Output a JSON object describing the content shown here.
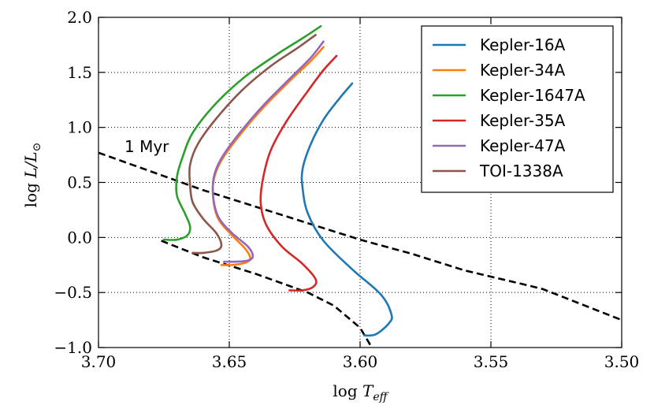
{
  "chart_data": {
    "type": "line",
    "xlabel_prefix": "log ",
    "xlabel_var": "T",
    "xlabel_sub": "eff",
    "ylabel_prefix": "log ",
    "ylabel_var": "L/L",
    "ylabel_sub": "⊙",
    "xlim": [
      3.7,
      3.5
    ],
    "ylim": [
      -1.0,
      2.0
    ],
    "x_ticks": [
      3.7,
      3.65,
      3.6,
      3.55,
      3.5
    ],
    "x_tick_labels": [
      "3.70",
      "3.65",
      "3.60",
      "3.55",
      "3.50"
    ],
    "y_ticks": [
      2.0,
      1.5,
      1.0,
      0.5,
      0.0,
      -0.5,
      -1.0
    ],
    "y_tick_labels": [
      "2.0",
      "1.5",
      "1.0",
      "0.5",
      "0.0",
      "−0.5",
      "−1.0"
    ],
    "grid": true,
    "legend_position": "top-right",
    "annotation": "1 Myr",
    "series": [
      {
        "name": "Kepler-16A",
        "color": "#1f77b4",
        "points": [
          [
            3.5985,
            -0.89
          ],
          [
            3.594,
            -0.88
          ],
          [
            3.589,
            -0.78
          ],
          [
            3.588,
            -0.7
          ],
          [
            3.592,
            -0.52
          ],
          [
            3.603,
            -0.29
          ],
          [
            3.614,
            -0.03
          ],
          [
            3.62,
            0.22
          ],
          [
            3.622,
            0.45
          ],
          [
            3.622,
            0.62
          ],
          [
            3.619,
            0.84
          ],
          [
            3.614,
            1.07
          ],
          [
            3.608,
            1.26
          ],
          [
            3.603,
            1.4
          ]
        ]
      },
      {
        "name": "Kepler-34A",
        "color": "#ff7f0e",
        "points": [
          [
            3.653,
            -0.25
          ],
          [
            3.649,
            -0.25
          ],
          [
            3.644,
            -0.23
          ],
          [
            3.642,
            -0.19
          ],
          [
            3.644,
            -0.1
          ],
          [
            3.649,
            0.02
          ],
          [
            3.654,
            0.16
          ],
          [
            3.656,
            0.32
          ],
          [
            3.656,
            0.52
          ],
          [
            3.653,
            0.7
          ],
          [
            3.646,
            0.93
          ],
          [
            3.637,
            1.18
          ],
          [
            3.627,
            1.42
          ],
          [
            3.619,
            1.6
          ],
          [
            3.614,
            1.73
          ]
        ]
      },
      {
        "name": "Kepler-1647A",
        "color": "#2ca02c",
        "points": [
          [
            3.675,
            -0.02
          ],
          [
            3.67,
            -0.02
          ],
          [
            3.666,
            0.02
          ],
          [
            3.665,
            0.1
          ],
          [
            3.667,
            0.22
          ],
          [
            3.67,
            0.38
          ],
          [
            3.67,
            0.55
          ],
          [
            3.668,
            0.72
          ],
          [
            3.664,
            0.95
          ],
          [
            3.655,
            1.22
          ],
          [
            3.644,
            1.46
          ],
          [
            3.632,
            1.66
          ],
          [
            3.622,
            1.81
          ],
          [
            3.615,
            1.92
          ]
        ]
      },
      {
        "name": "Kepler-35A",
        "color": "#d62728",
        "points": [
          [
            3.627,
            -0.48
          ],
          [
            3.622,
            -0.48
          ],
          [
            3.618,
            -0.45
          ],
          [
            3.617,
            -0.38
          ],
          [
            3.622,
            -0.24
          ],
          [
            3.63,
            -0.08
          ],
          [
            3.636,
            0.12
          ],
          [
            3.638,
            0.32
          ],
          [
            3.637,
            0.55
          ],
          [
            3.634,
            0.8
          ],
          [
            3.628,
            1.06
          ],
          [
            3.62,
            1.33
          ],
          [
            3.614,
            1.52
          ],
          [
            3.609,
            1.65
          ]
        ]
      },
      {
        "name": "Kepler-47A",
        "color": "#9467bd",
        "points": [
          [
            3.652,
            -0.22
          ],
          [
            3.648,
            -0.22
          ],
          [
            3.643,
            -0.21
          ],
          [
            3.641,
            -0.17
          ],
          [
            3.643,
            -0.08
          ],
          [
            3.649,
            0.04
          ],
          [
            3.654,
            0.18
          ],
          [
            3.656,
            0.34
          ],
          [
            3.656,
            0.54
          ],
          [
            3.653,
            0.72
          ],
          [
            3.646,
            0.95
          ],
          [
            3.637,
            1.2
          ],
          [
            3.627,
            1.44
          ],
          [
            3.619,
            1.63
          ],
          [
            3.614,
            1.78
          ]
        ]
      },
      {
        "name": "TOI-1338A",
        "color": "#8c564b",
        "points": [
          [
            3.664,
            -0.14
          ],
          [
            3.66,
            -0.14
          ],
          [
            3.655,
            -0.12
          ],
          [
            3.653,
            -0.07
          ],
          [
            3.655,
            0.04
          ],
          [
            3.66,
            0.17
          ],
          [
            3.664,
            0.32
          ],
          [
            3.665,
            0.48
          ],
          [
            3.665,
            0.66
          ],
          [
            3.662,
            0.85
          ],
          [
            3.655,
            1.08
          ],
          [
            3.645,
            1.34
          ],
          [
            3.634,
            1.56
          ],
          [
            3.624,
            1.72
          ],
          [
            3.617,
            1.84
          ]
        ]
      }
    ],
    "isochrones": [
      {
        "color": "#000000",
        "style": "dashed",
        "points": [
          [
            3.7,
            0.77
          ],
          [
            3.68,
            0.6
          ],
          [
            3.66,
            0.43
          ],
          [
            3.64,
            0.28
          ],
          [
            3.62,
            0.13
          ],
          [
            3.6,
            -0.02
          ],
          [
            3.58,
            -0.15
          ],
          [
            3.56,
            -0.3
          ],
          [
            3.535,
            -0.44
          ],
          [
            3.53,
            -0.47
          ],
          [
            3.5,
            -0.75
          ]
        ]
      },
      {
        "color": "#000000",
        "style": "dashed",
        "points": [
          [
            3.676,
            -0.03
          ],
          [
            3.66,
            -0.18
          ],
          [
            3.64,
            -0.33
          ],
          [
            3.62,
            -0.5
          ],
          [
            3.61,
            -0.62
          ],
          [
            3.6,
            -0.82
          ],
          [
            3.5955,
            -1.0
          ]
        ]
      }
    ]
  }
}
